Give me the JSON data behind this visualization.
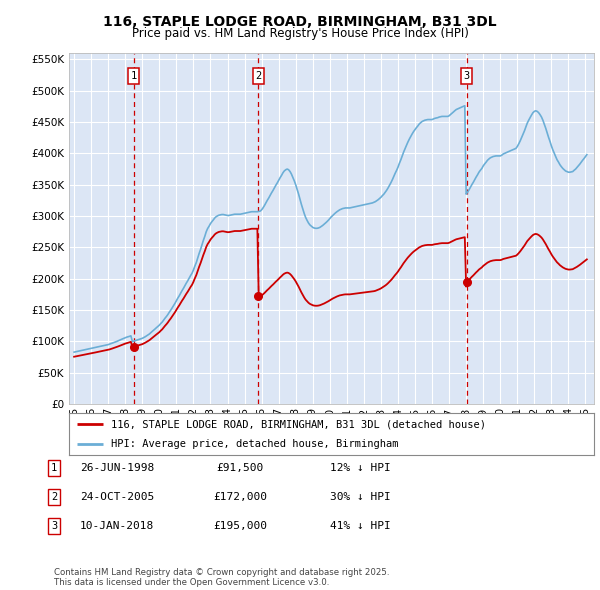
{
  "title": "116, STAPLE LODGE ROAD, BIRMINGHAM, B31 3DL",
  "subtitle": "Price paid vs. HM Land Registry's House Price Index (HPI)",
  "background_color": "#ffffff",
  "plot_bg_color": "#dce6f5",
  "grid_color": "#ffffff",
  "ylim": [
    0,
    560000
  ],
  "yticks": [
    0,
    50000,
    100000,
    150000,
    200000,
    250000,
    300000,
    350000,
    400000,
    450000,
    500000,
    550000
  ],
  "ytick_labels": [
    "£0",
    "£50K",
    "£100K",
    "£150K",
    "£200K",
    "£250K",
    "£300K",
    "£350K",
    "£400K",
    "£450K",
    "£500K",
    "£550K"
  ],
  "xlim_start": 1994.7,
  "xlim_end": 2025.5,
  "xticks": [
    1995,
    1996,
    1997,
    1998,
    1999,
    2000,
    2001,
    2002,
    2003,
    2004,
    2005,
    2006,
    2007,
    2008,
    2009,
    2010,
    2011,
    2012,
    2013,
    2014,
    2015,
    2016,
    2017,
    2018,
    2019,
    2020,
    2021,
    2022,
    2023,
    2024,
    2025
  ],
  "sale_dates": [
    1998.487,
    2005.812,
    2018.028
  ],
  "sale_prices": [
    91500,
    172000,
    195000
  ],
  "sale_labels": [
    "1",
    "2",
    "3"
  ],
  "hpi_line_color": "#6baed6",
  "sale_line_color": "#cc0000",
  "dashed_line_color": "#cc0000",
  "legend_label_sale": "116, STAPLE LODGE ROAD, BIRMINGHAM, B31 3DL (detached house)",
  "legend_label_hpi": "HPI: Average price, detached house, Birmingham",
  "footnote": "Contains HM Land Registry data © Crown copyright and database right 2025.\nThis data is licensed under the Open Government Licence v3.0.",
  "table": [
    {
      "num": "1",
      "date": "26-JUN-1998",
      "price": "£91,500",
      "note": "12% ↓ HPI"
    },
    {
      "num": "2",
      "date": "24-OCT-2005",
      "price": "£172,000",
      "note": "30% ↓ HPI"
    },
    {
      "num": "3",
      "date": "10-JAN-2018",
      "price": "£195,000",
      "note": "41% ↓ HPI"
    }
  ],
  "hpi_x": [
    1995.0,
    1995.08,
    1995.17,
    1995.25,
    1995.33,
    1995.42,
    1995.5,
    1995.58,
    1995.67,
    1995.75,
    1995.83,
    1995.92,
    1996.0,
    1996.08,
    1996.17,
    1996.25,
    1996.33,
    1996.42,
    1996.5,
    1996.58,
    1996.67,
    1996.75,
    1996.83,
    1996.92,
    1997.0,
    1997.08,
    1997.17,
    1997.25,
    1997.33,
    1997.42,
    1997.5,
    1997.58,
    1997.67,
    1997.75,
    1997.83,
    1997.92,
    1998.0,
    1998.08,
    1998.17,
    1998.25,
    1998.33,
    1998.42,
    1998.5,
    1998.58,
    1998.67,
    1998.75,
    1998.83,
    1998.92,
    1999.0,
    1999.08,
    1999.17,
    1999.25,
    1999.33,
    1999.42,
    1999.5,
    1999.58,
    1999.67,
    1999.75,
    1999.83,
    1999.92,
    2000.0,
    2000.08,
    2000.17,
    2000.25,
    2000.33,
    2000.42,
    2000.5,
    2000.58,
    2000.67,
    2000.75,
    2000.83,
    2000.92,
    2001.0,
    2001.08,
    2001.17,
    2001.25,
    2001.33,
    2001.42,
    2001.5,
    2001.58,
    2001.67,
    2001.75,
    2001.83,
    2001.92,
    2002.0,
    2002.08,
    2002.17,
    2002.25,
    2002.33,
    2002.42,
    2002.5,
    2002.58,
    2002.67,
    2002.75,
    2002.83,
    2002.92,
    2003.0,
    2003.08,
    2003.17,
    2003.25,
    2003.33,
    2003.42,
    2003.5,
    2003.58,
    2003.67,
    2003.75,
    2003.83,
    2003.92,
    2004.0,
    2004.08,
    2004.17,
    2004.25,
    2004.33,
    2004.42,
    2004.5,
    2004.58,
    2004.67,
    2004.75,
    2004.83,
    2004.92,
    2005.0,
    2005.08,
    2005.17,
    2005.25,
    2005.33,
    2005.42,
    2005.5,
    2005.58,
    2005.67,
    2005.75,
    2005.83,
    2005.92,
    2006.0,
    2006.08,
    2006.17,
    2006.25,
    2006.33,
    2006.42,
    2006.5,
    2006.58,
    2006.67,
    2006.75,
    2006.83,
    2006.92,
    2007.0,
    2007.08,
    2007.17,
    2007.25,
    2007.33,
    2007.42,
    2007.5,
    2007.58,
    2007.67,
    2007.75,
    2007.83,
    2007.92,
    2008.0,
    2008.08,
    2008.17,
    2008.25,
    2008.33,
    2008.42,
    2008.5,
    2008.58,
    2008.67,
    2008.75,
    2008.83,
    2008.92,
    2009.0,
    2009.08,
    2009.17,
    2009.25,
    2009.33,
    2009.42,
    2009.5,
    2009.58,
    2009.67,
    2009.75,
    2009.83,
    2009.92,
    2010.0,
    2010.08,
    2010.17,
    2010.25,
    2010.33,
    2010.42,
    2010.5,
    2010.58,
    2010.67,
    2010.75,
    2010.83,
    2010.92,
    2011.0,
    2011.08,
    2011.17,
    2011.25,
    2011.33,
    2011.42,
    2011.5,
    2011.58,
    2011.67,
    2011.75,
    2011.83,
    2011.92,
    2012.0,
    2012.08,
    2012.17,
    2012.25,
    2012.33,
    2012.42,
    2012.5,
    2012.58,
    2012.67,
    2012.75,
    2012.83,
    2012.92,
    2013.0,
    2013.08,
    2013.17,
    2013.25,
    2013.33,
    2013.42,
    2013.5,
    2013.58,
    2013.67,
    2013.75,
    2013.83,
    2013.92,
    2014.0,
    2014.08,
    2014.17,
    2014.25,
    2014.33,
    2014.42,
    2014.5,
    2014.58,
    2014.67,
    2014.75,
    2014.83,
    2014.92,
    2015.0,
    2015.08,
    2015.17,
    2015.25,
    2015.33,
    2015.42,
    2015.5,
    2015.58,
    2015.67,
    2015.75,
    2015.83,
    2015.92,
    2016.0,
    2016.08,
    2016.17,
    2016.25,
    2016.33,
    2016.42,
    2016.5,
    2016.58,
    2016.67,
    2016.75,
    2016.83,
    2016.92,
    2017.0,
    2017.08,
    2017.17,
    2017.25,
    2017.33,
    2017.42,
    2017.5,
    2017.58,
    2017.67,
    2017.75,
    2017.83,
    2017.92,
    2018.0,
    2018.08,
    2018.17,
    2018.25,
    2018.33,
    2018.42,
    2018.5,
    2018.58,
    2018.67,
    2018.75,
    2018.83,
    2018.92,
    2019.0,
    2019.08,
    2019.17,
    2019.25,
    2019.33,
    2019.42,
    2019.5,
    2019.58,
    2019.67,
    2019.75,
    2019.83,
    2019.92,
    2020.0,
    2020.08,
    2020.17,
    2020.25,
    2020.33,
    2020.42,
    2020.5,
    2020.58,
    2020.67,
    2020.75,
    2020.83,
    2020.92,
    2021.0,
    2021.08,
    2021.17,
    2021.25,
    2021.33,
    2021.42,
    2021.5,
    2021.58,
    2021.67,
    2021.75,
    2021.83,
    2021.92,
    2022.0,
    2022.08,
    2022.17,
    2022.25,
    2022.33,
    2022.42,
    2022.5,
    2022.58,
    2022.67,
    2022.75,
    2022.83,
    2022.92,
    2023.0,
    2023.08,
    2023.17,
    2023.25,
    2023.33,
    2023.42,
    2023.5,
    2023.58,
    2023.67,
    2023.75,
    2023.83,
    2023.92,
    2024.0,
    2024.08,
    2024.17,
    2024.25,
    2024.33,
    2024.42,
    2024.5,
    2024.58,
    2024.67,
    2024.75,
    2024.83,
    2024.92,
    2025.0,
    2025.08
  ],
  "hpi_y": [
    83000,
    83500,
    84000,
    84500,
    85000,
    85500,
    86000,
    86500,
    87000,
    87500,
    88000,
    88500,
    89000,
    89500,
    90000,
    90500,
    91000,
    91500,
    92000,
    92500,
    93000,
    93500,
    94000,
    94500,
    95000,
    95800,
    96600,
    97500,
    98300,
    99200,
    100000,
    101000,
    102000,
    103000,
    104000,
    105000,
    106000,
    106800,
    107500,
    108200,
    109000,
    99800,
    100500,
    101200,
    102000,
    102700,
    103500,
    104200,
    105000,
    106200,
    107500,
    109000,
    110500,
    112000,
    114000,
    116000,
    118000,
    120000,
    122000,
    124000,
    126000,
    128500,
    131000,
    134000,
    137000,
    140000,
    143000,
    146500,
    150000,
    153500,
    157000,
    161000,
    165000,
    169000,
    173000,
    177000,
    181000,
    185000,
    189000,
    193000,
    197000,
    201000,
    205000,
    209000,
    214000,
    220000,
    226000,
    233000,
    240000,
    247000,
    254000,
    261000,
    268000,
    275000,
    280000,
    284000,
    288000,
    291000,
    294000,
    297000,
    299000,
    300500,
    301500,
    302000,
    302500,
    302500,
    302000,
    301500,
    301000,
    301000,
    301500,
    302000,
    302500,
    303000,
    303000,
    303000,
    303000,
    303000,
    303500,
    304000,
    304500,
    305000,
    305500,
    306000,
    306500,
    307000,
    307000,
    307000,
    307000,
    307000,
    307500,
    308000,
    310000,
    313000,
    317000,
    321000,
    325000,
    329000,
    333000,
    337000,
    341000,
    345000,
    349000,
    353000,
    357000,
    361000,
    365000,
    369000,
    372000,
    374000,
    375000,
    374000,
    371000,
    367000,
    362000,
    356000,
    350000,
    343000,
    335000,
    327000,
    319000,
    311000,
    304000,
    298000,
    293000,
    289000,
    286000,
    284000,
    282000,
    281000,
    280500,
    280500,
    281000,
    282000,
    283500,
    285000,
    287000,
    289000,
    291000,
    293500,
    296000,
    298500,
    301000,
    303000,
    305000,
    307000,
    308500,
    310000,
    311000,
    312000,
    312500,
    313000,
    313000,
    313000,
    313000,
    313500,
    314000,
    314500,
    315000,
    315500,
    316000,
    316500,
    317000,
    317500,
    318000,
    318500,
    319000,
    319500,
    320000,
    320500,
    321000,
    322000,
    323000,
    324500,
    326000,
    328000,
    330000,
    332500,
    335000,
    338000,
    341000,
    345000,
    349000,
    353000,
    358000,
    363000,
    368000,
    373000,
    378000,
    384000,
    390000,
    396000,
    402000,
    408000,
    413000,
    418000,
    423000,
    427000,
    431000,
    435000,
    438000,
    441000,
    444000,
    447000,
    449000,
    451000,
    452000,
    453000,
    453500,
    454000,
    454000,
    454000,
    454000,
    455000,
    456000,
    456500,
    457000,
    458000,
    458500,
    459000,
    459000,
    459000,
    459000,
    459000,
    460000,
    462000,
    464000,
    466000,
    468000,
    470000,
    471000,
    472000,
    473000,
    474000,
    475000,
    476000,
    335000,
    338000,
    342000,
    346000,
    350000,
    354000,
    358000,
    362000,
    366000,
    370000,
    373000,
    376000,
    380000,
    383000,
    386000,
    389000,
    391000,
    393000,
    394000,
    395000,
    395500,
    396000,
    396000,
    396000,
    396000,
    397000,
    399000,
    400000,
    401000,
    402000,
    403000,
    404000,
    405000,
    406000,
    407000,
    408000,
    411000,
    415000,
    420000,
    425000,
    430000,
    436000,
    442000,
    448000,
    453000,
    457000,
    461000,
    465000,
    467000,
    468000,
    467000,
    465000,
    462000,
    458000,
    453000,
    447000,
    440000,
    433000,
    426000,
    419000,
    412000,
    406000,
    400000,
    395000,
    390000,
    386000,
    382000,
    379000,
    376000,
    374000,
    372000,
    371000,
    370000,
    370000,
    370500,
    371000,
    373000,
    375000,
    377500,
    380000,
    383000,
    386000,
    389000,
    392000,
    395000,
    398000,
    401000,
    404000,
    407000,
    410000,
    413000,
    416000,
    419000,
    421000,
    423000,
    425000,
    427000,
    429000
  ]
}
